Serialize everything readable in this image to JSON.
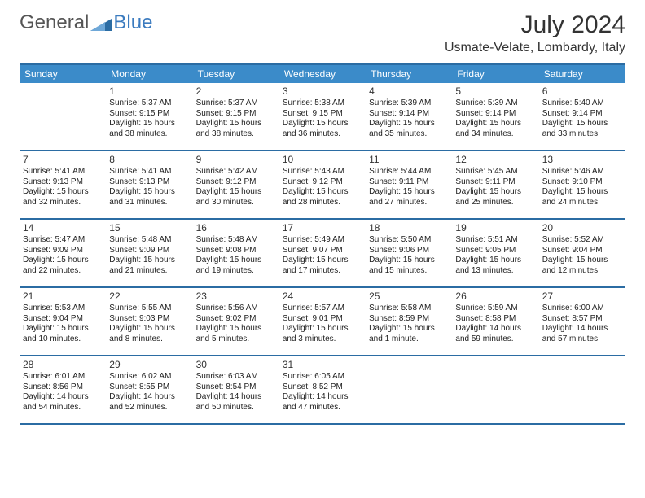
{
  "brand": {
    "general": "General",
    "blue": "Blue"
  },
  "title": "July 2024",
  "location": "Usmate-Velate, Lombardy, Italy",
  "colors": {
    "header_bg": "#3b8bc9",
    "border": "#2b6ca3",
    "brand_blue": "#3b7bbf",
    "text": "#222222",
    "bg": "#ffffff"
  },
  "weekdays": [
    "Sunday",
    "Monday",
    "Tuesday",
    "Wednesday",
    "Thursday",
    "Friday",
    "Saturday"
  ],
  "weeks": [
    [
      {
        "n": "",
        "sr": "",
        "ss": "",
        "dl": ""
      },
      {
        "n": "1",
        "sr": "Sunrise: 5:37 AM",
        "ss": "Sunset: 9:15 PM",
        "dl": "Daylight: 15 hours and 38 minutes."
      },
      {
        "n": "2",
        "sr": "Sunrise: 5:37 AM",
        "ss": "Sunset: 9:15 PM",
        "dl": "Daylight: 15 hours and 38 minutes."
      },
      {
        "n": "3",
        "sr": "Sunrise: 5:38 AM",
        "ss": "Sunset: 9:15 PM",
        "dl": "Daylight: 15 hours and 36 minutes."
      },
      {
        "n": "4",
        "sr": "Sunrise: 5:39 AM",
        "ss": "Sunset: 9:14 PM",
        "dl": "Daylight: 15 hours and 35 minutes."
      },
      {
        "n": "5",
        "sr": "Sunrise: 5:39 AM",
        "ss": "Sunset: 9:14 PM",
        "dl": "Daylight: 15 hours and 34 minutes."
      },
      {
        "n": "6",
        "sr": "Sunrise: 5:40 AM",
        "ss": "Sunset: 9:14 PM",
        "dl": "Daylight: 15 hours and 33 minutes."
      }
    ],
    [
      {
        "n": "7",
        "sr": "Sunrise: 5:41 AM",
        "ss": "Sunset: 9:13 PM",
        "dl": "Daylight: 15 hours and 32 minutes."
      },
      {
        "n": "8",
        "sr": "Sunrise: 5:41 AM",
        "ss": "Sunset: 9:13 PM",
        "dl": "Daylight: 15 hours and 31 minutes."
      },
      {
        "n": "9",
        "sr": "Sunrise: 5:42 AM",
        "ss": "Sunset: 9:12 PM",
        "dl": "Daylight: 15 hours and 30 minutes."
      },
      {
        "n": "10",
        "sr": "Sunrise: 5:43 AM",
        "ss": "Sunset: 9:12 PM",
        "dl": "Daylight: 15 hours and 28 minutes."
      },
      {
        "n": "11",
        "sr": "Sunrise: 5:44 AM",
        "ss": "Sunset: 9:11 PM",
        "dl": "Daylight: 15 hours and 27 minutes."
      },
      {
        "n": "12",
        "sr": "Sunrise: 5:45 AM",
        "ss": "Sunset: 9:11 PM",
        "dl": "Daylight: 15 hours and 25 minutes."
      },
      {
        "n": "13",
        "sr": "Sunrise: 5:46 AM",
        "ss": "Sunset: 9:10 PM",
        "dl": "Daylight: 15 hours and 24 minutes."
      }
    ],
    [
      {
        "n": "14",
        "sr": "Sunrise: 5:47 AM",
        "ss": "Sunset: 9:09 PM",
        "dl": "Daylight: 15 hours and 22 minutes."
      },
      {
        "n": "15",
        "sr": "Sunrise: 5:48 AM",
        "ss": "Sunset: 9:09 PM",
        "dl": "Daylight: 15 hours and 21 minutes."
      },
      {
        "n": "16",
        "sr": "Sunrise: 5:48 AM",
        "ss": "Sunset: 9:08 PM",
        "dl": "Daylight: 15 hours and 19 minutes."
      },
      {
        "n": "17",
        "sr": "Sunrise: 5:49 AM",
        "ss": "Sunset: 9:07 PM",
        "dl": "Daylight: 15 hours and 17 minutes."
      },
      {
        "n": "18",
        "sr": "Sunrise: 5:50 AM",
        "ss": "Sunset: 9:06 PM",
        "dl": "Daylight: 15 hours and 15 minutes."
      },
      {
        "n": "19",
        "sr": "Sunrise: 5:51 AM",
        "ss": "Sunset: 9:05 PM",
        "dl": "Daylight: 15 hours and 13 minutes."
      },
      {
        "n": "20",
        "sr": "Sunrise: 5:52 AM",
        "ss": "Sunset: 9:04 PM",
        "dl": "Daylight: 15 hours and 12 minutes."
      }
    ],
    [
      {
        "n": "21",
        "sr": "Sunrise: 5:53 AM",
        "ss": "Sunset: 9:04 PM",
        "dl": "Daylight: 15 hours and 10 minutes."
      },
      {
        "n": "22",
        "sr": "Sunrise: 5:55 AM",
        "ss": "Sunset: 9:03 PM",
        "dl": "Daylight: 15 hours and 8 minutes."
      },
      {
        "n": "23",
        "sr": "Sunrise: 5:56 AM",
        "ss": "Sunset: 9:02 PM",
        "dl": "Daylight: 15 hours and 5 minutes."
      },
      {
        "n": "24",
        "sr": "Sunrise: 5:57 AM",
        "ss": "Sunset: 9:01 PM",
        "dl": "Daylight: 15 hours and 3 minutes."
      },
      {
        "n": "25",
        "sr": "Sunrise: 5:58 AM",
        "ss": "Sunset: 8:59 PM",
        "dl": "Daylight: 15 hours and 1 minute."
      },
      {
        "n": "26",
        "sr": "Sunrise: 5:59 AM",
        "ss": "Sunset: 8:58 PM",
        "dl": "Daylight: 14 hours and 59 minutes."
      },
      {
        "n": "27",
        "sr": "Sunrise: 6:00 AM",
        "ss": "Sunset: 8:57 PM",
        "dl": "Daylight: 14 hours and 57 minutes."
      }
    ],
    [
      {
        "n": "28",
        "sr": "Sunrise: 6:01 AM",
        "ss": "Sunset: 8:56 PM",
        "dl": "Daylight: 14 hours and 54 minutes."
      },
      {
        "n": "29",
        "sr": "Sunrise: 6:02 AM",
        "ss": "Sunset: 8:55 PM",
        "dl": "Daylight: 14 hours and 52 minutes."
      },
      {
        "n": "30",
        "sr": "Sunrise: 6:03 AM",
        "ss": "Sunset: 8:54 PM",
        "dl": "Daylight: 14 hours and 50 minutes."
      },
      {
        "n": "31",
        "sr": "Sunrise: 6:05 AM",
        "ss": "Sunset: 8:52 PM",
        "dl": "Daylight: 14 hours and 47 minutes."
      },
      {
        "n": "",
        "sr": "",
        "ss": "",
        "dl": ""
      },
      {
        "n": "",
        "sr": "",
        "ss": "",
        "dl": ""
      },
      {
        "n": "",
        "sr": "",
        "ss": "",
        "dl": ""
      }
    ]
  ]
}
